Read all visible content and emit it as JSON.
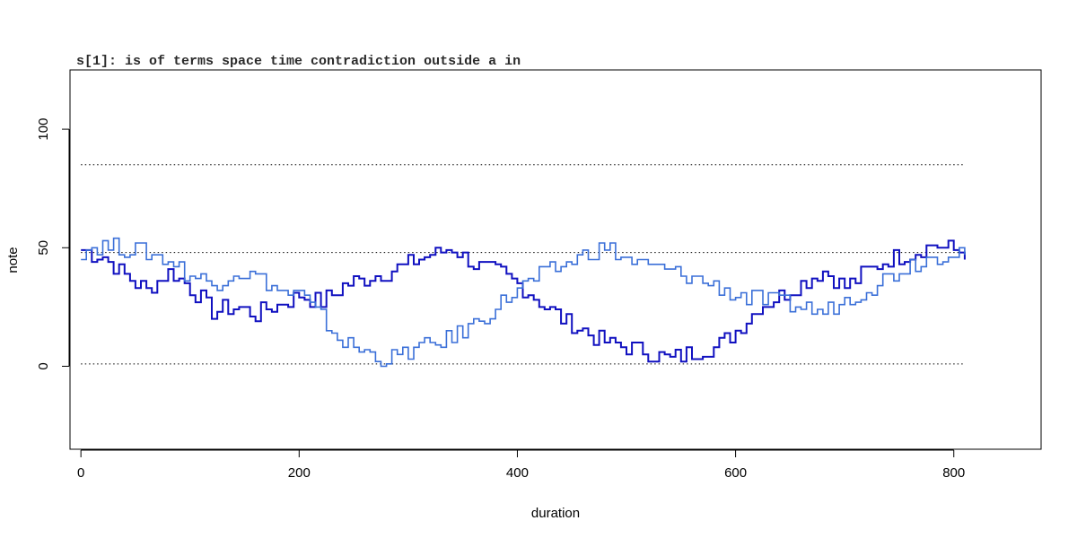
{
  "chart_data": {
    "type": "line",
    "title": "s[1]: is of terms space time contradiction outside a in",
    "xlabel": "duration",
    "ylabel": "note",
    "xlim": [
      -10,
      880
    ],
    "ylim": [
      -35,
      125
    ],
    "xticks": [
      0,
      200,
      400,
      600,
      800
    ],
    "yticks": [
      0,
      50,
      100
    ],
    "reference_lines": [
      1,
      48,
      85
    ],
    "reference_line_x_range": [
      0,
      810
    ],
    "step_width": 5,
    "grid": false,
    "legend": "none",
    "series": [
      {
        "color": "#1010c0",
        "x": [
          0,
          20,
          40,
          60,
          80,
          100,
          120,
          140,
          160,
          180,
          200,
          220,
          240,
          260,
          280,
          300,
          320,
          340,
          360,
          380,
          400,
          420,
          440,
          460,
          480,
          500,
          520,
          540,
          560,
          580,
          600,
          620,
          640,
          660,
          680,
          700,
          720,
          740,
          760,
          780,
          800,
          810
        ],
        "y": [
          49,
          46,
          38,
          32,
          40,
          33,
          23,
          25,
          22,
          26,
          30,
          27,
          34,
          37,
          40,
          43,
          47,
          50,
          43,
          40,
          35,
          27,
          20,
          15,
          10,
          8,
          6,
          3,
          6,
          8,
          15,
          25,
          30,
          35,
          40,
          33,
          40,
          45,
          48,
          51,
          49,
          48
        ]
      },
      {
        "color": "#3a6fd8",
        "x": [
          0,
          20,
          40,
          60,
          80,
          100,
          120,
          140,
          160,
          180,
          200,
          220,
          240,
          260,
          280,
          300,
          320,
          340,
          360,
          380,
          400,
          420,
          440,
          460,
          480,
          500,
          520,
          540,
          560,
          580,
          600,
          620,
          640,
          660,
          680,
          700,
          720,
          740,
          760,
          780,
          800,
          810
        ],
        "y": [
          49,
          51,
          50,
          48,
          45,
          38,
          35,
          40,
          38,
          32,
          30,
          20,
          10,
          6,
          3,
          6,
          9,
          12,
          18,
          25,
          33,
          38,
          42,
          47,
          50,
          45,
          42,
          40,
          37,
          34,
          30,
          28,
          27,
          25,
          23,
          28,
          33,
          38,
          43,
          46,
          49,
          48
        ]
      }
    ]
  }
}
